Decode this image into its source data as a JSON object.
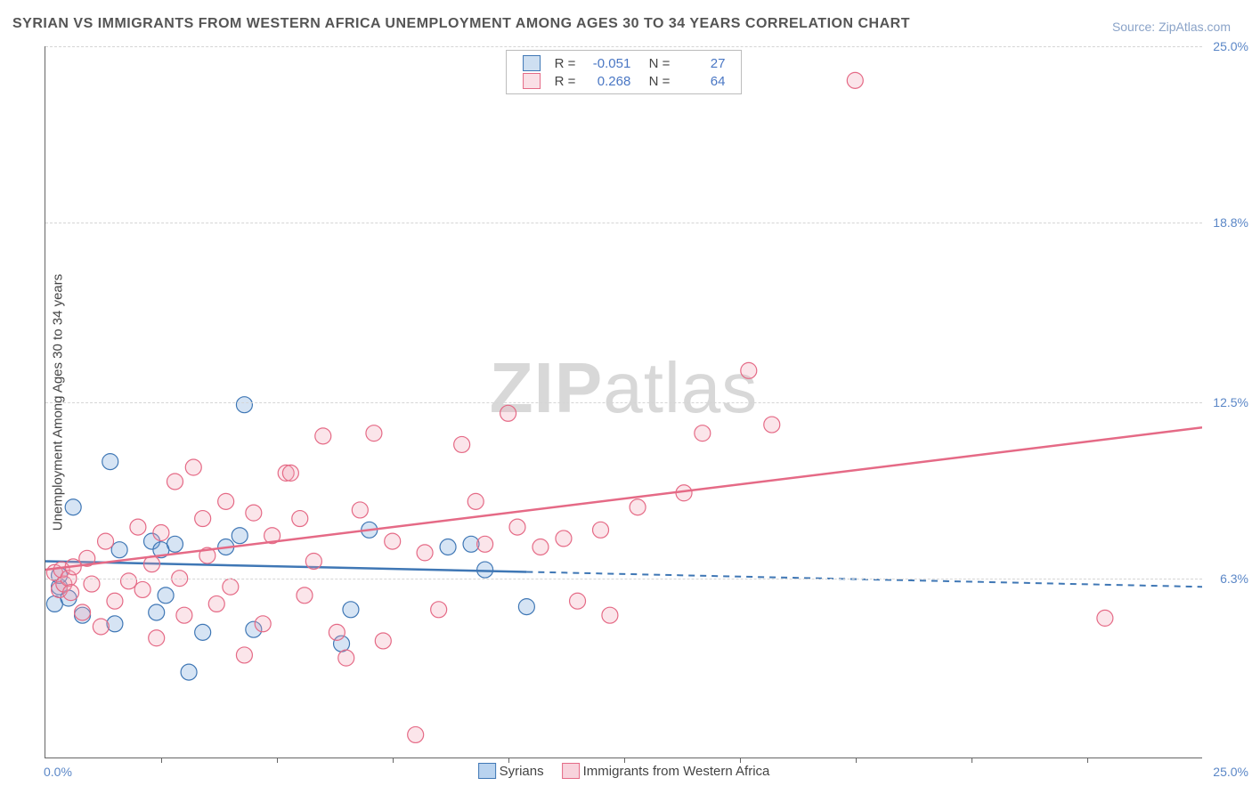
{
  "title": "SYRIAN VS IMMIGRANTS FROM WESTERN AFRICA UNEMPLOYMENT AMONG AGES 30 TO 34 YEARS CORRELATION CHART",
  "source": "Source: ZipAtlas.com",
  "y_axis_title": "Unemployment Among Ages 30 to 34 years",
  "watermark_prefix": "ZIP",
  "watermark_suffix": "atlas",
  "chart": {
    "type": "scatter",
    "xlim": [
      0,
      25
    ],
    "ylim": [
      0,
      25
    ],
    "y_ticks": [
      6.3,
      12.5,
      18.8,
      25.0
    ],
    "y_tick_labels": [
      "6.3%",
      "12.5%",
      "18.8%",
      "25.0%"
    ],
    "x_origin_label": "0.0%",
    "x_end_label": "25.0%",
    "x_minor_ticks": [
      2.5,
      5.0,
      7.5,
      10.0,
      12.5,
      15.0,
      17.5,
      20.0,
      22.5
    ],
    "background_color": "#ffffff",
    "grid_color": "#d5d5d5",
    "marker_radius": 9,
    "marker_fill_opacity": 0.28,
    "stroke_width": 1.2,
    "series": [
      {
        "name": "Syrians",
        "color": "#6d9fd6",
        "stroke": "#3f77b5",
        "R": "-0.051",
        "N": "27",
        "trend": {
          "y_at_x0": 6.9,
          "y_at_xmax": 6.0,
          "solid_until_x": 10.4
        },
        "points": [
          [
            0.2,
            5.4
          ],
          [
            0.3,
            6.0
          ],
          [
            0.3,
            6.4
          ],
          [
            0.5,
            5.6
          ],
          [
            0.6,
            8.8
          ],
          [
            0.8,
            5.0
          ],
          [
            1.4,
            10.4
          ],
          [
            1.5,
            4.7
          ],
          [
            1.6,
            7.3
          ],
          [
            2.3,
            7.6
          ],
          [
            2.4,
            5.1
          ],
          [
            2.5,
            7.3
          ],
          [
            2.6,
            5.7
          ],
          [
            2.8,
            7.5
          ],
          [
            3.1,
            3.0
          ],
          [
            3.4,
            4.4
          ],
          [
            3.9,
            7.4
          ],
          [
            4.2,
            7.8
          ],
          [
            4.3,
            12.4
          ],
          [
            4.5,
            4.5
          ],
          [
            6.4,
            4.0
          ],
          [
            6.6,
            5.2
          ],
          [
            7.0,
            8.0
          ],
          [
            8.7,
            7.4
          ],
          [
            9.2,
            7.5
          ],
          [
            9.5,
            6.6
          ],
          [
            10.4,
            5.3
          ]
        ]
      },
      {
        "name": "Immigrants from Western Africa",
        "color": "#f0a3b4",
        "stroke": "#e56a86",
        "R": "0.268",
        "N": "64",
        "trend": {
          "y_at_x0": 6.6,
          "y_at_xmax": 11.6,
          "solid_until_x": 25
        },
        "points": [
          [
            0.2,
            6.5
          ],
          [
            0.3,
            5.9
          ],
          [
            0.35,
            6.6
          ],
          [
            0.4,
            6.1
          ],
          [
            0.5,
            6.3
          ],
          [
            0.55,
            5.8
          ],
          [
            0.6,
            6.7
          ],
          [
            0.8,
            5.1
          ],
          [
            0.9,
            7.0
          ],
          [
            1.0,
            6.1
          ],
          [
            1.2,
            4.6
          ],
          [
            1.3,
            7.6
          ],
          [
            1.5,
            5.5
          ],
          [
            1.8,
            6.2
          ],
          [
            2.0,
            8.1
          ],
          [
            2.1,
            5.9
          ],
          [
            2.3,
            6.8
          ],
          [
            2.4,
            4.2
          ],
          [
            2.5,
            7.9
          ],
          [
            2.8,
            9.7
          ],
          [
            2.9,
            6.3
          ],
          [
            3.0,
            5.0
          ],
          [
            3.2,
            10.2
          ],
          [
            3.4,
            8.4
          ],
          [
            3.5,
            7.1
          ],
          [
            3.7,
            5.4
          ],
          [
            3.9,
            9.0
          ],
          [
            4.0,
            6.0
          ],
          [
            4.3,
            3.6
          ],
          [
            4.5,
            8.6
          ],
          [
            4.7,
            4.7
          ],
          [
            4.9,
            7.8
          ],
          [
            5.2,
            10.0
          ],
          [
            5.3,
            10.0
          ],
          [
            5.5,
            8.4
          ],
          [
            5.6,
            5.7
          ],
          [
            5.8,
            6.9
          ],
          [
            6.0,
            11.3
          ],
          [
            6.3,
            4.4
          ],
          [
            6.5,
            3.5
          ],
          [
            6.8,
            8.7
          ],
          [
            7.1,
            11.4
          ],
          [
            7.3,
            4.1
          ],
          [
            7.5,
            7.6
          ],
          [
            8.0,
            0.8
          ],
          [
            8.2,
            7.2
          ],
          [
            8.5,
            5.2
          ],
          [
            9.0,
            11.0
          ],
          [
            9.3,
            9.0
          ],
          [
            9.5,
            7.5
          ],
          [
            10.0,
            12.1
          ],
          [
            10.2,
            8.1
          ],
          [
            10.7,
            7.4
          ],
          [
            11.2,
            7.7
          ],
          [
            11.5,
            5.5
          ],
          [
            12.0,
            8.0
          ],
          [
            12.2,
            5.0
          ],
          [
            12.8,
            8.8
          ],
          [
            13.8,
            9.3
          ],
          [
            14.2,
            11.4
          ],
          [
            15.2,
            13.6
          ],
          [
            17.5,
            23.8
          ],
          [
            15.7,
            11.7
          ],
          [
            22.9,
            4.9
          ]
        ]
      }
    ]
  },
  "legend_bottom": [
    {
      "label": "Syrians",
      "fill": "#b9d3ef",
      "border": "#3f77b5"
    },
    {
      "label": "Immigrants from Western Africa",
      "fill": "#f8d3dc",
      "border": "#e56a86"
    }
  ]
}
